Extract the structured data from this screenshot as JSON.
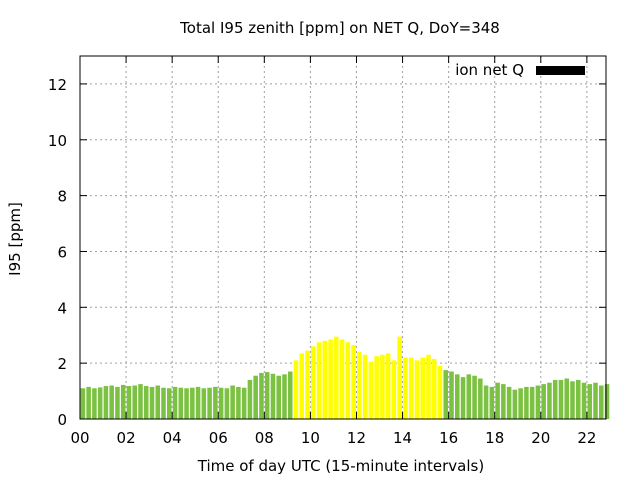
{
  "chart_data": {
    "type": "bar",
    "title": "Total I95 zenith [ppm] on NET Q, DoY=348",
    "xlabel": "Time of day UTC (15-minute intervals)",
    "ylabel": "I95 [ppm]",
    "x_ticks": [
      "00",
      "02",
      "04",
      "06",
      "08",
      "10",
      "12",
      "14",
      "16",
      "18",
      "20",
      "22"
    ],
    "y_ticks": [
      "0",
      "2",
      "4",
      "6",
      "8",
      "10",
      "12"
    ],
    "xlim": [
      0,
      22.83
    ],
    "ylim": [
      0,
      13
    ],
    "grid": true,
    "legend": {
      "placement": "top-right",
      "label": "ion net Q",
      "color": "#000000"
    },
    "colors": {
      "night": "#7cc242",
      "day": "#ffff00"
    },
    "day_range_hours": [
      9.25,
      15.75
    ],
    "series": [
      {
        "bar_width_hours": 0.25,
        "values": [
          1.1,
          1.15,
          1.1,
          1.13,
          1.18,
          1.2,
          1.15,
          1.22,
          1.18,
          1.2,
          1.25,
          1.18,
          1.15,
          1.2,
          1.12,
          1.1,
          1.15,
          1.12,
          1.1,
          1.12,
          1.15,
          1.1,
          1.12,
          1.15,
          1.12,
          1.1,
          1.2,
          1.15,
          1.12,
          1.4,
          1.55,
          1.65,
          1.68,
          1.62,
          1.55,
          1.6,
          1.7,
          2.1,
          2.35,
          2.45,
          2.6,
          2.75,
          2.8,
          2.85,
          2.95,
          2.85,
          2.75,
          2.65,
          2.4,
          2.3,
          2.05,
          2.25,
          2.3,
          2.35,
          2.1,
          2.95,
          2.2,
          2.2,
          2.1,
          2.2,
          2.3,
          2.15,
          1.9,
          1.75,
          1.7,
          1.6,
          1.5,
          1.6,
          1.55,
          1.45,
          1.2,
          1.15,
          1.3,
          1.25,
          1.15,
          1.05,
          1.1,
          1.15,
          1.15,
          1.2,
          1.25,
          1.3,
          1.4,
          1.4,
          1.45,
          1.35,
          1.4,
          1.3,
          1.25,
          1.3,
          1.2,
          1.25
        ]
      }
    ]
  }
}
